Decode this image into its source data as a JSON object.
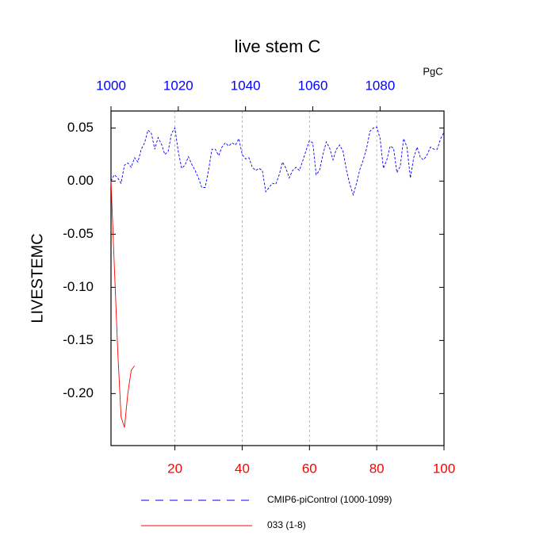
{
  "chart_data": {
    "type": "line",
    "title": "live stem C",
    "ylabel": "LIVESTEMC",
    "units": "PgC",
    "xlim": [
      1,
      100
    ],
    "xticks": [
      20,
      40,
      60,
      80,
      100
    ],
    "x2lim": [
      1000,
      1099
    ],
    "x2ticks": [
      1000,
      1020,
      1040,
      1060,
      1080
    ],
    "ylim": [
      -0.249,
      0.066
    ],
    "yticks": [
      {
        "value": 0.05,
        "label": "0.05"
      },
      {
        "value": 0,
        "label": "0.00"
      },
      {
        "value": -0.05,
        "label": "-0.05"
      },
      {
        "value": -0.1,
        "label": "-0.10"
      },
      {
        "value": -0.15,
        "label": "-0.15"
      },
      {
        "value": -0.2,
        "label": "-0.20"
      }
    ],
    "grid": true,
    "xtick_color": "#ff0000",
    "x2tick_color": "#0000ff",
    "series": [
      {
        "name": "CMIP6-piControl (1000-1099)",
        "color": "#0000ff",
        "dash": true,
        "x": [
          1,
          2,
          3,
          4,
          5,
          6,
          7,
          8,
          9,
          10,
          11,
          12,
          13,
          14,
          15,
          16,
          17,
          18,
          19,
          20,
          21,
          22,
          23,
          24,
          25,
          26,
          27,
          28,
          29,
          30,
          31,
          32,
          33,
          34,
          35,
          36,
          37,
          38,
          39,
          40,
          41,
          42,
          43,
          44,
          45,
          46,
          47,
          48,
          49,
          50,
          51,
          52,
          53,
          54,
          55,
          56,
          57,
          58,
          59,
          60,
          61,
          62,
          63,
          64,
          65,
          66,
          67,
          68,
          69,
          70,
          71,
          72,
          73,
          74,
          75,
          76,
          77,
          78,
          79,
          80,
          81,
          82,
          83,
          84,
          85,
          86,
          87,
          88,
          89,
          90,
          91,
          92,
          93,
          94,
          95,
          96,
          97,
          98,
          99,
          100
        ],
        "values": [
          0.0,
          0.006,
          0.003,
          -0.002,
          0.015,
          0.017,
          0.013,
          0.022,
          0.018,
          0.03,
          0.036,
          0.048,
          0.045,
          0.03,
          0.041,
          0.035,
          0.025,
          0.028,
          0.045,
          0.05,
          0.028,
          0.012,
          0.015,
          0.023,
          0.016,
          0.01,
          0.003,
          -0.006,
          -0.006,
          0.01,
          0.03,
          0.03,
          0.024,
          0.032,
          0.036,
          0.033,
          0.036,
          0.034,
          0.04,
          0.025,
          0.021,
          0.022,
          0.013,
          0.01,
          0.012,
          0.01,
          -0.01,
          -0.006,
          -0.002,
          -0.003,
          0.006,
          0.018,
          0.012,
          0.003,
          0.01,
          0.013,
          0.01,
          0.019,
          0.029,
          0.038,
          0.036,
          0.006,
          0.01,
          0.025,
          0.037,
          0.031,
          0.02,
          0.03,
          0.034,
          0.028,
          0.01,
          -0.003,
          -0.013,
          -0.002,
          0.011,
          0.02,
          0.031,
          0.047,
          0.05,
          0.051,
          0.04,
          0.012,
          0.02,
          0.033,
          0.031,
          0.008,
          0.014,
          0.04,
          0.032,
          0.003,
          0.022,
          0.032,
          0.022,
          0.02,
          0.025,
          0.032,
          0.03,
          0.03,
          0.04,
          0.046
        ]
      },
      {
        "name": "033 (1-8)",
        "color": "#ff0000",
        "dash": false,
        "x": [
          1,
          2,
          3,
          4,
          5,
          6,
          7,
          8
        ],
        "values": [
          0.0,
          -0.08,
          -0.16,
          -0.222,
          -0.232,
          -0.2,
          -0.178,
          -0.174
        ]
      }
    ]
  }
}
